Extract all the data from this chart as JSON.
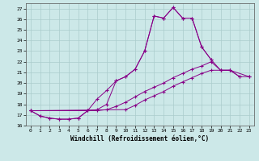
{
  "xlabel": "Windchill (Refroidissement éolien,°C)",
  "bg_color": "#cce8e8",
  "grid_color": "#aacccc",
  "line_color": "#880088",
  "xlim": [
    -0.5,
    23.5
  ],
  "ylim": [
    16,
    27.5
  ],
  "xticks": [
    0,
    1,
    2,
    3,
    4,
    5,
    6,
    7,
    8,
    9,
    10,
    11,
    12,
    13,
    14,
    15,
    16,
    17,
    18,
    19,
    20,
    21,
    22,
    23
  ],
  "yticks": [
    16,
    17,
    18,
    19,
    20,
    21,
    22,
    23,
    24,
    25,
    26,
    27
  ],
  "line1_x": [
    0,
    1,
    2,
    3,
    4,
    5,
    6,
    7,
    8,
    9,
    10,
    11,
    12,
    13,
    14,
    15,
    16,
    17,
    18,
    19,
    20,
    21,
    22
  ],
  "line1_y": [
    17.4,
    16.9,
    16.7,
    16.6,
    16.6,
    16.7,
    17.4,
    17.5,
    18.0,
    20.2,
    20.6,
    21.3,
    23.0,
    26.3,
    26.1,
    27.1,
    26.1,
    26.1,
    23.4,
    22.2,
    21.2,
    21.2,
    20.6
  ],
  "line2_x": [
    0,
    1,
    2,
    3,
    4,
    5,
    6,
    7,
    8,
    9,
    10,
    11,
    12,
    13,
    14,
    15,
    16,
    17,
    18,
    19
  ],
  "line2_y": [
    17.4,
    16.9,
    16.7,
    16.6,
    16.6,
    16.7,
    17.4,
    18.5,
    19.3,
    20.2,
    20.6,
    21.3,
    23.0,
    26.3,
    26.1,
    27.1,
    26.1,
    26.1,
    23.4,
    22.2
  ],
  "line3_x": [
    0,
    6,
    7,
    8,
    9,
    10,
    11,
    12,
    13,
    14,
    15,
    16,
    17,
    18,
    19,
    20,
    21,
    22,
    23
  ],
  "line3_y": [
    17.4,
    17.4,
    17.4,
    17.5,
    17.8,
    18.2,
    18.7,
    19.2,
    19.6,
    20.0,
    20.5,
    20.9,
    21.3,
    21.6,
    22.0,
    21.2,
    21.2,
    20.6,
    20.6
  ],
  "line4_x": [
    0,
    10,
    11,
    12,
    13,
    14,
    15,
    16,
    17,
    18,
    19,
    20,
    21,
    23
  ],
  "line4_y": [
    17.4,
    17.5,
    17.9,
    18.4,
    18.8,
    19.2,
    19.7,
    20.1,
    20.5,
    20.9,
    21.2,
    21.2,
    21.2,
    20.6
  ]
}
